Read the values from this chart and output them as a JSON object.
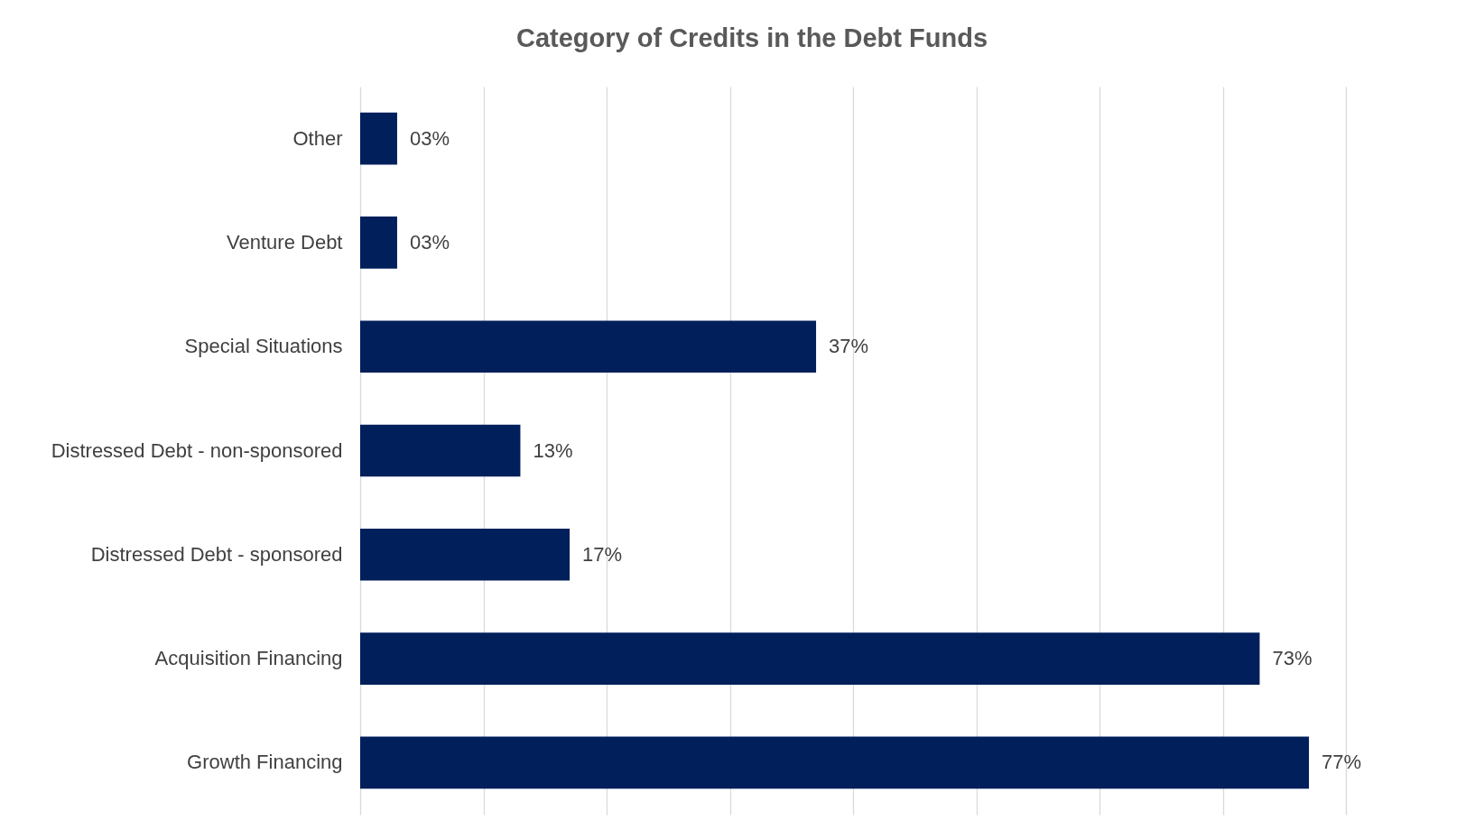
{
  "chart_data": {
    "type": "bar",
    "orientation": "horizontal",
    "title": "Category of Credits in the Debt Funds",
    "categories": [
      "Other",
      "Venture Debt",
      "Special Situations",
      "Distressed Debt - non-sponsored",
      "Distressed Debt - sponsored",
      "Acquisition Financing",
      "Growth Financing"
    ],
    "values": [
      3,
      3,
      37,
      13,
      17,
      73,
      77
    ],
    "value_labels": [
      "03%",
      "03%",
      "37%",
      "13%",
      "17%",
      "73%",
      "77%"
    ],
    "color": "#001f5b",
    "xlim": [
      0,
      80
    ],
    "xticks": [
      {
        "value": 0,
        "label": null
      },
      {
        "value": 10,
        "label": null
      },
      {
        "value": 20,
        "label": null
      },
      {
        "value": 30,
        "label": null
      },
      {
        "value": 40,
        "label": null
      },
      {
        "value": 50,
        "label": null
      },
      {
        "value": 60,
        "label": null
      },
      {
        "value": 70,
        "label": null
      },
      {
        "value": 80,
        "label": null
      }
    ],
    "tick_labels": "y",
    "grid": "x"
  }
}
